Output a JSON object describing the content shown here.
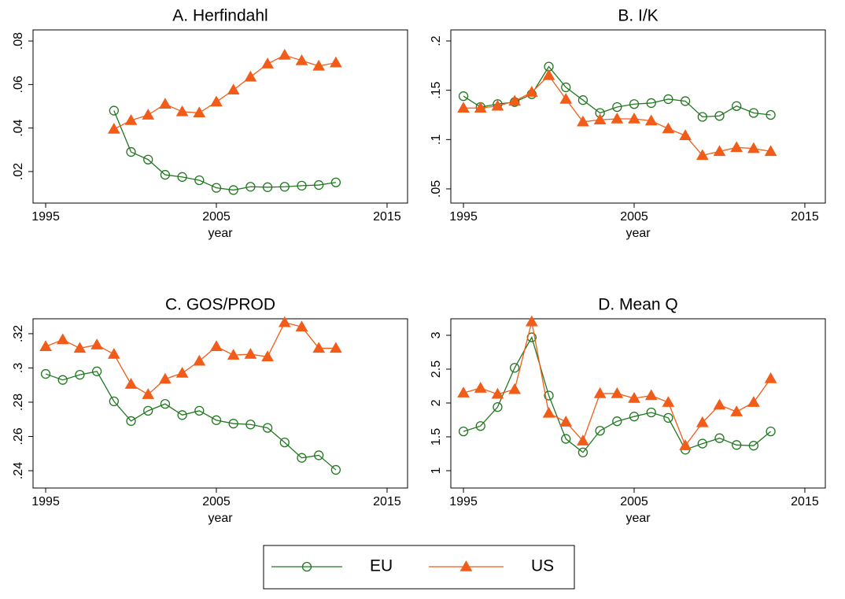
{
  "chart_data": [
    {
      "type": "line",
      "title": "A. Herfindahl",
      "x_label": "year",
      "x": [
        1999,
        2000,
        2001,
        2002,
        2003,
        2004,
        2005,
        2006,
        2007,
        2008,
        2009,
        2010,
        2011,
        2012
      ],
      "series": [
        {
          "name": "EU",
          "color": "#217821",
          "marker": "circle",
          "values": [
            0.048,
            0.029,
            0.0255,
            0.0185,
            0.0175,
            0.016,
            0.0125,
            0.0115,
            0.013,
            0.0128,
            0.013,
            0.0135,
            0.0138,
            0.015
          ]
        },
        {
          "name": "US",
          "color": "#f25c19",
          "marker": "triangle",
          "values": [
            0.0395,
            0.0435,
            0.046,
            0.051,
            0.0475,
            0.047,
            0.052,
            0.0575,
            0.0635,
            0.0695,
            0.0735,
            0.071,
            0.0685,
            0.07
          ]
        }
      ],
      "xlim": [
        1994.26,
        2016.2
      ],
      "xticks": [
        1995,
        2005,
        2015
      ],
      "ylim": [
        0.0055,
        0.0851
      ],
      "yticks": [
        {
          "value": 0.02,
          "label": ".02"
        },
        {
          "value": 0.04,
          "label": ".04"
        },
        {
          "value": 0.06,
          "label": ".06"
        },
        {
          "value": 0.08,
          "label": ".08"
        }
      ]
    },
    {
      "type": "line",
      "title": "B. I/K",
      "x_label": "year",
      "x": [
        1995,
        1996,
        1997,
        1998,
        1999,
        2000,
        2001,
        2002,
        2003,
        2004,
        2005,
        2006,
        2007,
        2008,
        2009,
        2010,
        2011,
        2012,
        2013
      ],
      "series": [
        {
          "name": "EU",
          "color": "#217821",
          "marker": "circle",
          "values": [
            0.144,
            0.133,
            0.136,
            0.138,
            0.146,
            0.174,
            0.153,
            0.14,
            0.127,
            0.133,
            0.136,
            0.137,
            0.141,
            0.139,
            0.123,
            0.124,
            0.134,
            0.127,
            0.125
          ]
        },
        {
          "name": "US",
          "color": "#f25c19",
          "marker": "triangle",
          "values": [
            0.132,
            0.132,
            0.134,
            0.139,
            0.148,
            0.165,
            0.141,
            0.118,
            0.12,
            0.121,
            0.121,
            0.119,
            0.111,
            0.104,
            0.084,
            0.088,
            0.092,
            0.091,
            0.088
          ]
        }
      ],
      "xlim": [
        1994.26,
        2016.2
      ],
      "xticks": [
        1995,
        2005,
        2015
      ],
      "ylim": [
        0.0356,
        0.2112
      ],
      "yticks": [
        {
          "value": 0.05,
          "label": ".05"
        },
        {
          "value": 0.1,
          "label": ".1"
        },
        {
          "value": 0.15,
          "label": ".15"
        },
        {
          "value": 0.2,
          "label": ".2"
        }
      ]
    },
    {
      "type": "line",
      "title": "C. GOS/PROD",
      "x_label": "year",
      "x": [
        1995,
        1996,
        1997,
        1998,
        1999,
        2000,
        2001,
        2002,
        2003,
        2004,
        2005,
        2006,
        2007,
        2008,
        2009,
        2010,
        2011,
        2012
      ],
      "series": [
        {
          "name": "EU",
          "color": "#217821",
          "marker": "circle",
          "values": [
            0.2965,
            0.293,
            0.296,
            0.298,
            0.2805,
            0.269,
            0.275,
            0.279,
            0.2725,
            0.275,
            0.2695,
            0.2675,
            0.267,
            0.265,
            0.2565,
            0.2475,
            0.249,
            0.2405
          ]
        },
        {
          "name": "US",
          "color": "#f25c19",
          "marker": "triangle",
          "values": [
            0.3125,
            0.3165,
            0.3115,
            0.3135,
            0.308,
            0.2905,
            0.2845,
            0.2935,
            0.297,
            0.304,
            0.3125,
            0.3075,
            0.308,
            0.3065,
            0.3265,
            0.324,
            0.3115,
            0.3115
          ]
        }
      ],
      "xlim": [
        1994.26,
        2016.2
      ],
      "xticks": [
        1995,
        2005,
        2015
      ],
      "ylim": [
        0.2299,
        0.3287
      ],
      "yticks": [
        {
          "value": 0.24,
          "label": ".24"
        },
        {
          "value": 0.26,
          "label": ".26"
        },
        {
          "value": 0.28,
          "label": ".28"
        },
        {
          "value": 0.3,
          "label": ".3"
        },
        {
          "value": 0.32,
          "label": ".32"
        }
      ]
    },
    {
      "type": "line",
      "title": "D. Mean Q",
      "x_label": "year",
      "x": [
        1995,
        1996,
        1997,
        1998,
        1999,
        2000,
        2001,
        2002,
        2003,
        2004,
        2005,
        2006,
        2007,
        2008,
        2009,
        2010,
        2011,
        2012,
        2013
      ],
      "series": [
        {
          "name": "EU",
          "color": "#217821",
          "marker": "circle",
          "values": [
            1.58,
            1.66,
            1.94,
            2.52,
            2.97,
            2.11,
            1.47,
            1.27,
            1.59,
            1.73,
            1.8,
            1.86,
            1.78,
            1.31,
            1.4,
            1.48,
            1.38,
            1.37,
            1.58
          ]
        },
        {
          "name": "US",
          "color": "#f25c19",
          "marker": "triangle",
          "values": [
            2.15,
            2.22,
            2.13,
            2.2,
            3.2,
            1.85,
            1.72,
            1.44,
            2.14,
            2.14,
            2.07,
            2.11,
            2.01,
            1.37,
            1.71,
            1.97,
            1.87,
            2.01,
            2.36
          ]
        }
      ],
      "xlim": [
        1994.26,
        2016.2
      ],
      "xticks": [
        1995,
        2005,
        2015
      ],
      "ylim": [
        0.744,
        3.244
      ],
      "yticks": [
        1,
        1.5,
        2,
        2.5,
        3
      ]
    }
  ]
}
